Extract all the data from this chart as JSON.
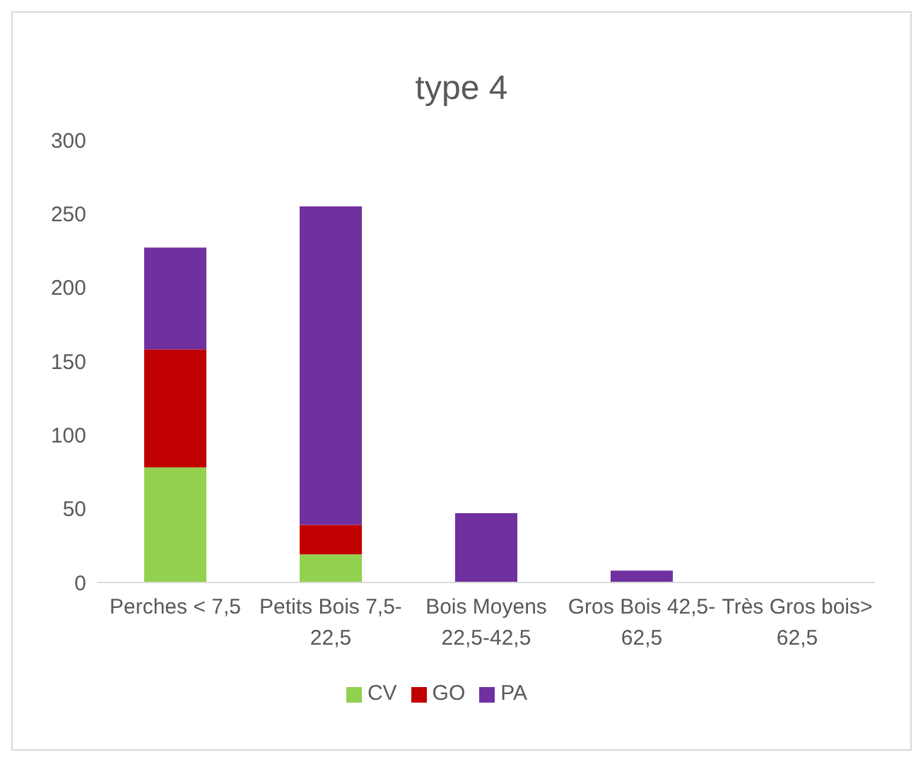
{
  "chart_data": {
    "type": "bar",
    "title": "type 4",
    "stacked": true,
    "categories": [
      "Perches  < 7,5",
      "Petits Bois 7,5-22,5",
      "Bois Moyens 22,5-42,5",
      "Gros Bois 42,5-62,5",
      "Très Gros bois> 62,5"
    ],
    "series": [
      {
        "name": "CV",
        "color": "#92d050",
        "values": [
          78,
          19,
          0,
          0,
          0
        ]
      },
      {
        "name": "GO",
        "color": "#c00000",
        "values": [
          80,
          20,
          0,
          0,
          0
        ]
      },
      {
        "name": "PA",
        "color": "#7030a0",
        "values": [
          69,
          216,
          47,
          8,
          0
        ]
      }
    ],
    "ylim": [
      0,
      300
    ],
    "yticks": [
      0,
      50,
      100,
      150,
      200,
      250,
      300
    ],
    "grid": false,
    "legend": "bottom"
  }
}
